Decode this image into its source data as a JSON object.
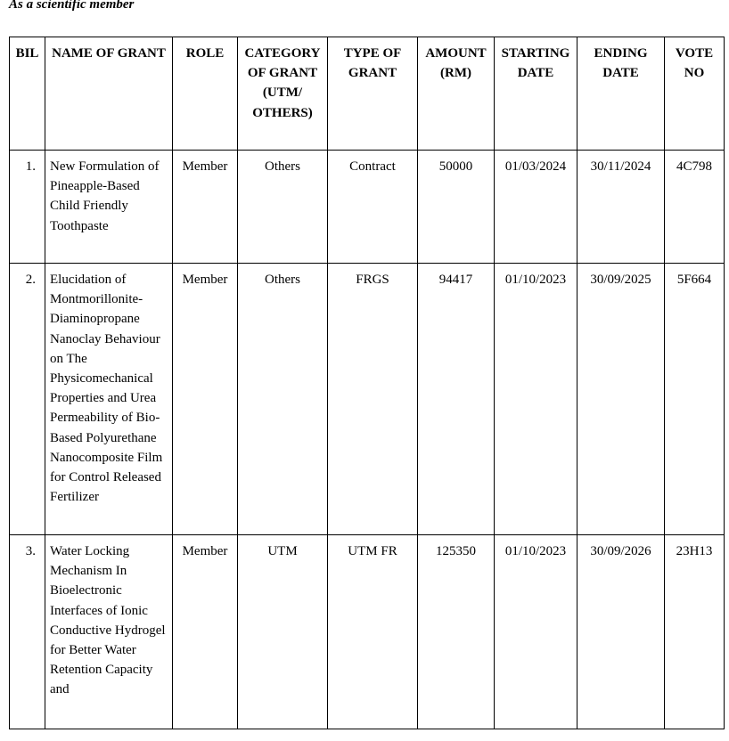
{
  "caption": "As a scientific member",
  "table": {
    "header": [
      "BIL",
      "NAME OF GRANT",
      "ROLE",
      "CATEGORY OF GRANT (UTM/ OTHERS)",
      "TYPE OF GRANT",
      "AMOUNT (RM)",
      "STARTING DATE",
      "ENDING DATE",
      "VOTE NO"
    ],
    "rows": [
      [
        "1.",
        "New Formulation of Pineapple-Based Child Friendly Toothpaste",
        "Member",
        "Others",
        "Contract",
        "50000",
        "01/03/2024",
        "30/11/2024",
        "4C798"
      ],
      [
        "2.",
        "Elucidation of Montmorillonite-Diaminopropane Nanoclay Behaviour on The Physicomechanical Properties and Urea Permeability of Bio-Based Polyurethane Nanocomposite Film for Control Released Fertilizer",
        "Member",
        "Others",
        "FRGS",
        "94417",
        "01/10/2023",
        "30/09/2025",
        "5F664"
      ],
      [
        "3.",
        "Water Locking Mechanism In Bioelectronic Interfaces of Ionic Conductive Hydrogel for Better Water Retention Capacity and",
        "Member",
        "UTM",
        "UTM FR",
        "125350",
        "01/10/2023",
        "30/09/2026",
        "23H13"
      ]
    ]
  }
}
